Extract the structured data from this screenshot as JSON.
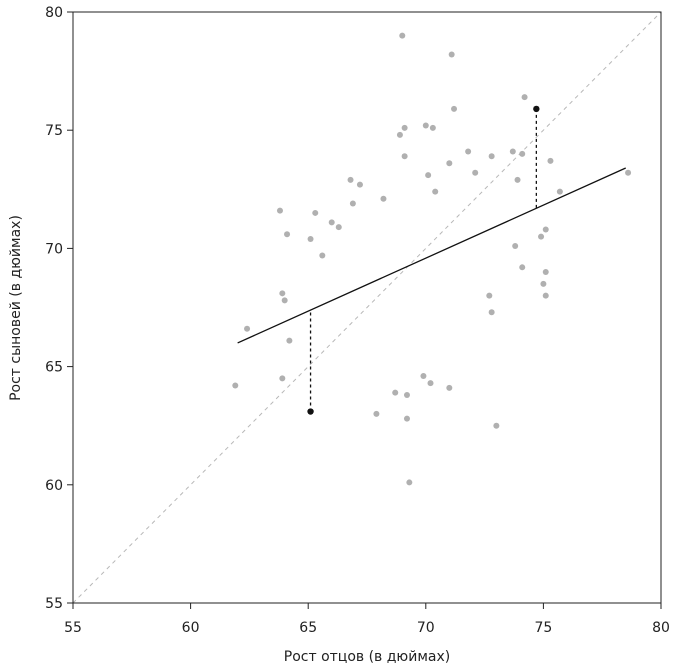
{
  "chart_data": {
    "type": "scatter",
    "title": "",
    "xlabel": "Рост отцов (в дюймах)",
    "ylabel": "Рост сыновей (в дюймах)",
    "xlim": [
      55,
      80
    ],
    "ylim": [
      55,
      80
    ],
    "xticks": [
      55,
      60,
      65,
      70,
      75,
      80
    ],
    "yticks": [
      55,
      60,
      65,
      70,
      75,
      80
    ],
    "xtick_labels": [
      "55",
      "60",
      "65",
      "70",
      "75",
      "80"
    ],
    "ytick_labels": [
      "55",
      "60",
      "65",
      "70",
      "75",
      "80"
    ],
    "grid": false,
    "colors": {
      "points": "#b0b0b0",
      "highlight": "#111111",
      "regression": "#111111",
      "diagonal": "#b8b8b8",
      "axis": "#222222"
    },
    "identity_line": {
      "x": [
        55,
        80
      ],
      "y": [
        55,
        80
      ],
      "style": "dashed"
    },
    "regression_line": {
      "x": [
        62.0,
        78.5
      ],
      "y": [
        66.0,
        73.4
      ]
    },
    "highlighted_points": [
      {
        "x": 65.1,
        "y": 63.1,
        "fit_y": 67.4
      },
      {
        "x": 74.7,
        "y": 75.9,
        "fit_y": 71.7
      }
    ],
    "series": [
      {
        "name": "observations",
        "points": [
          [
            69.0,
            79.0
          ],
          [
            71.1,
            78.2
          ],
          [
            74.2,
            76.4
          ],
          [
            71.2,
            75.9
          ],
          [
            69.1,
            75.1
          ],
          [
            70.0,
            75.2
          ],
          [
            70.3,
            75.1
          ],
          [
            68.9,
            74.8
          ],
          [
            73.7,
            74.1
          ],
          [
            71.8,
            74.1
          ],
          [
            72.8,
            73.9
          ],
          [
            74.1,
            74.0
          ],
          [
            75.3,
            73.7
          ],
          [
            78.6,
            73.2
          ],
          [
            73.9,
            72.9
          ],
          [
            72.1,
            73.2
          ],
          [
            75.7,
            72.4
          ],
          [
            66.8,
            72.9
          ],
          [
            67.2,
            72.7
          ],
          [
            68.2,
            72.1
          ],
          [
            69.1,
            73.9
          ],
          [
            70.1,
            73.1
          ],
          [
            71.0,
            73.6
          ],
          [
            70.4,
            72.4
          ],
          [
            63.8,
            71.6
          ],
          [
            65.3,
            71.5
          ],
          [
            66.0,
            71.1
          ],
          [
            66.9,
            71.9
          ],
          [
            64.1,
            70.6
          ],
          [
            65.1,
            70.4
          ],
          [
            65.6,
            69.7
          ],
          [
            66.3,
            70.9
          ],
          [
            75.1,
            70.8
          ],
          [
            74.9,
            70.5
          ],
          [
            73.8,
            70.1
          ],
          [
            74.1,
            69.2
          ],
          [
            75.1,
            69.0
          ],
          [
            75.0,
            68.5
          ],
          [
            75.1,
            68.0
          ],
          [
            62.4,
            66.6
          ],
          [
            63.9,
            68.1
          ],
          [
            64.0,
            67.8
          ],
          [
            64.2,
            66.1
          ],
          [
            61.9,
            64.2
          ],
          [
            63.9,
            64.5
          ],
          [
            72.8,
            67.3
          ],
          [
            72.7,
            68.0
          ],
          [
            73.0,
            62.5
          ],
          [
            69.3,
            60.1
          ],
          [
            69.2,
            62.8
          ],
          [
            71.0,
            64.1
          ],
          [
            67.9,
            63.0
          ],
          [
            68.7,
            63.9
          ],
          [
            69.2,
            63.8
          ],
          [
            69.9,
            64.6
          ],
          [
            70.2,
            64.3
          ]
        ]
      }
    ]
  }
}
